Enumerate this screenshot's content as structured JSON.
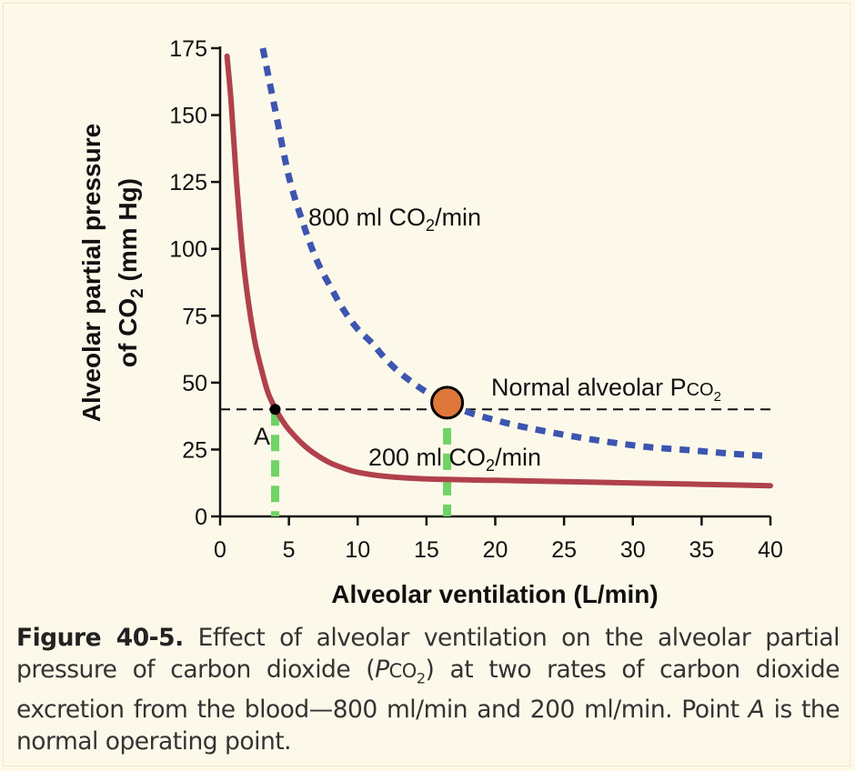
{
  "chart_data": {
    "type": "line",
    "xlabel": "Alveolar ventilation (L/min)",
    "ylabel_line1": "Alveolar partial pressure",
    "ylabel_line2_prefix": "of CO",
    "ylabel_line2_sub": "2",
    "ylabel_line2_suffix": " (mm Hg)",
    "xlim": [
      0,
      40
    ],
    "ylim": [
      0,
      175
    ],
    "x_ticks": [
      0,
      5,
      10,
      15,
      20,
      25,
      30,
      35,
      40
    ],
    "y_ticks": [
      0,
      25,
      50,
      75,
      100,
      125,
      150,
      175
    ],
    "series": [
      {
        "name_prefix": "800 ml CO",
        "name_sub": "2",
        "name_suffix": "/min",
        "style": "dashed",
        "color": "#3d55b0",
        "points": [
          [
            3.1,
            175
          ],
          [
            4,
            152
          ],
          [
            5,
            127
          ],
          [
            6,
            110
          ],
          [
            7,
            96
          ],
          [
            8,
            86
          ],
          [
            9,
            77
          ],
          [
            10,
            70
          ],
          [
            11,
            65
          ],
          [
            12,
            59
          ],
          [
            13,
            54
          ],
          [
            14,
            50
          ],
          [
            15,
            46.5
          ],
          [
            16.5,
            42.5
          ],
          [
            18,
            39
          ],
          [
            20,
            36
          ],
          [
            22,
            33.5
          ],
          [
            25,
            30.5
          ],
          [
            28,
            28
          ],
          [
            31,
            26
          ],
          [
            34,
            24.8
          ],
          [
            37,
            23.5
          ],
          [
            40,
            22.5
          ]
        ]
      },
      {
        "name_prefix": "200 ml CO",
        "name_sub": "2",
        "name_suffix": "/min",
        "style": "solid",
        "color": "#b0414c",
        "points": [
          [
            0.5,
            172
          ],
          [
            0.8,
            155
          ],
          [
            1.2,
            125
          ],
          [
            1.6,
            100
          ],
          [
            2,
            82
          ],
          [
            2.5,
            66
          ],
          [
            3,
            55
          ],
          [
            3.5,
            46
          ],
          [
            4,
            40.5
          ],
          [
            4.5,
            36
          ],
          [
            5,
            32.5
          ],
          [
            6,
            27
          ],
          [
            7,
            23
          ],
          [
            8,
            20
          ],
          [
            9,
            18
          ],
          [
            10,
            16.5
          ],
          [
            12,
            15
          ],
          [
            15,
            14
          ],
          [
            20,
            13.5
          ],
          [
            25,
            13
          ],
          [
            30,
            12.5
          ],
          [
            35,
            12
          ],
          [
            40,
            11.5
          ]
        ]
      }
    ],
    "reference_line": {
      "y": 40,
      "style": "dashed",
      "label_prefix": "Normal alveolar P",
      "label_small": "CO",
      "label_sub": "2"
    },
    "drop_lines": [
      {
        "x": 4,
        "y": 40,
        "color": "#6fd365"
      },
      {
        "x": 16.5,
        "y": 42.5,
        "color": "#6fd365"
      }
    ],
    "points": [
      {
        "label": "A",
        "x": 4,
        "y": 40,
        "color": "#000000",
        "size": "small"
      },
      {
        "label": "",
        "x": 16.5,
        "y": 42.5,
        "color": "#e0773a",
        "size": "large"
      }
    ]
  },
  "caption": {
    "label": "Figure 40-5.",
    "text_1": " Effect of alveolar ventilation on the alveolar partial pressure of carbon dioxide (",
    "italic_p": "P",
    "small_co": "CO",
    "sub_2": "2",
    "text_2": ") at two rates of carbon dioxide excretion from the blood—800 ml/min and 200 ml/min. Point ",
    "italic_a": "A",
    "text_3": " is the normal operating point."
  }
}
